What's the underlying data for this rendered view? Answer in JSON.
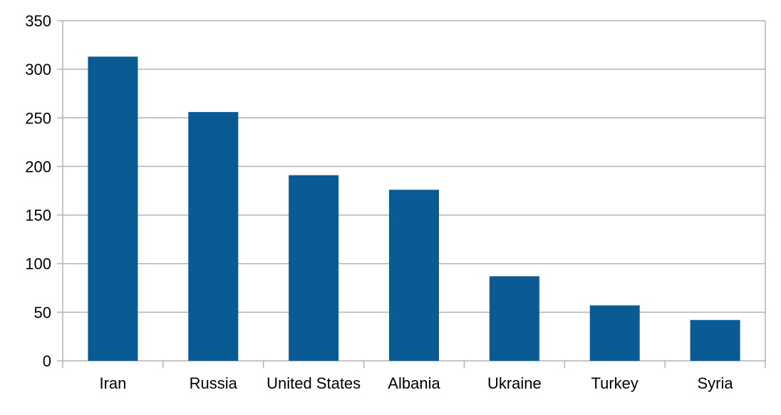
{
  "chart_data": {
    "type": "bar",
    "title": "",
    "xlabel": "",
    "ylabel": "",
    "categories": [
      "Iran",
      "Russia",
      "United States",
      "Albania",
      "Ukraine",
      "Turkey",
      "Syria"
    ],
    "values": [
      313,
      256,
      191,
      176,
      87,
      57,
      42
    ],
    "ylim": [
      0,
      350
    ],
    "yticks": [
      "0",
      "50",
      "100",
      "150",
      "200",
      "250",
      "300",
      "350"
    ],
    "grid": true,
    "legend": "none",
    "colors": {
      "bar": "#0a5a94",
      "grid": "#b3b3b3",
      "axis": "#b3b3b3"
    }
  }
}
